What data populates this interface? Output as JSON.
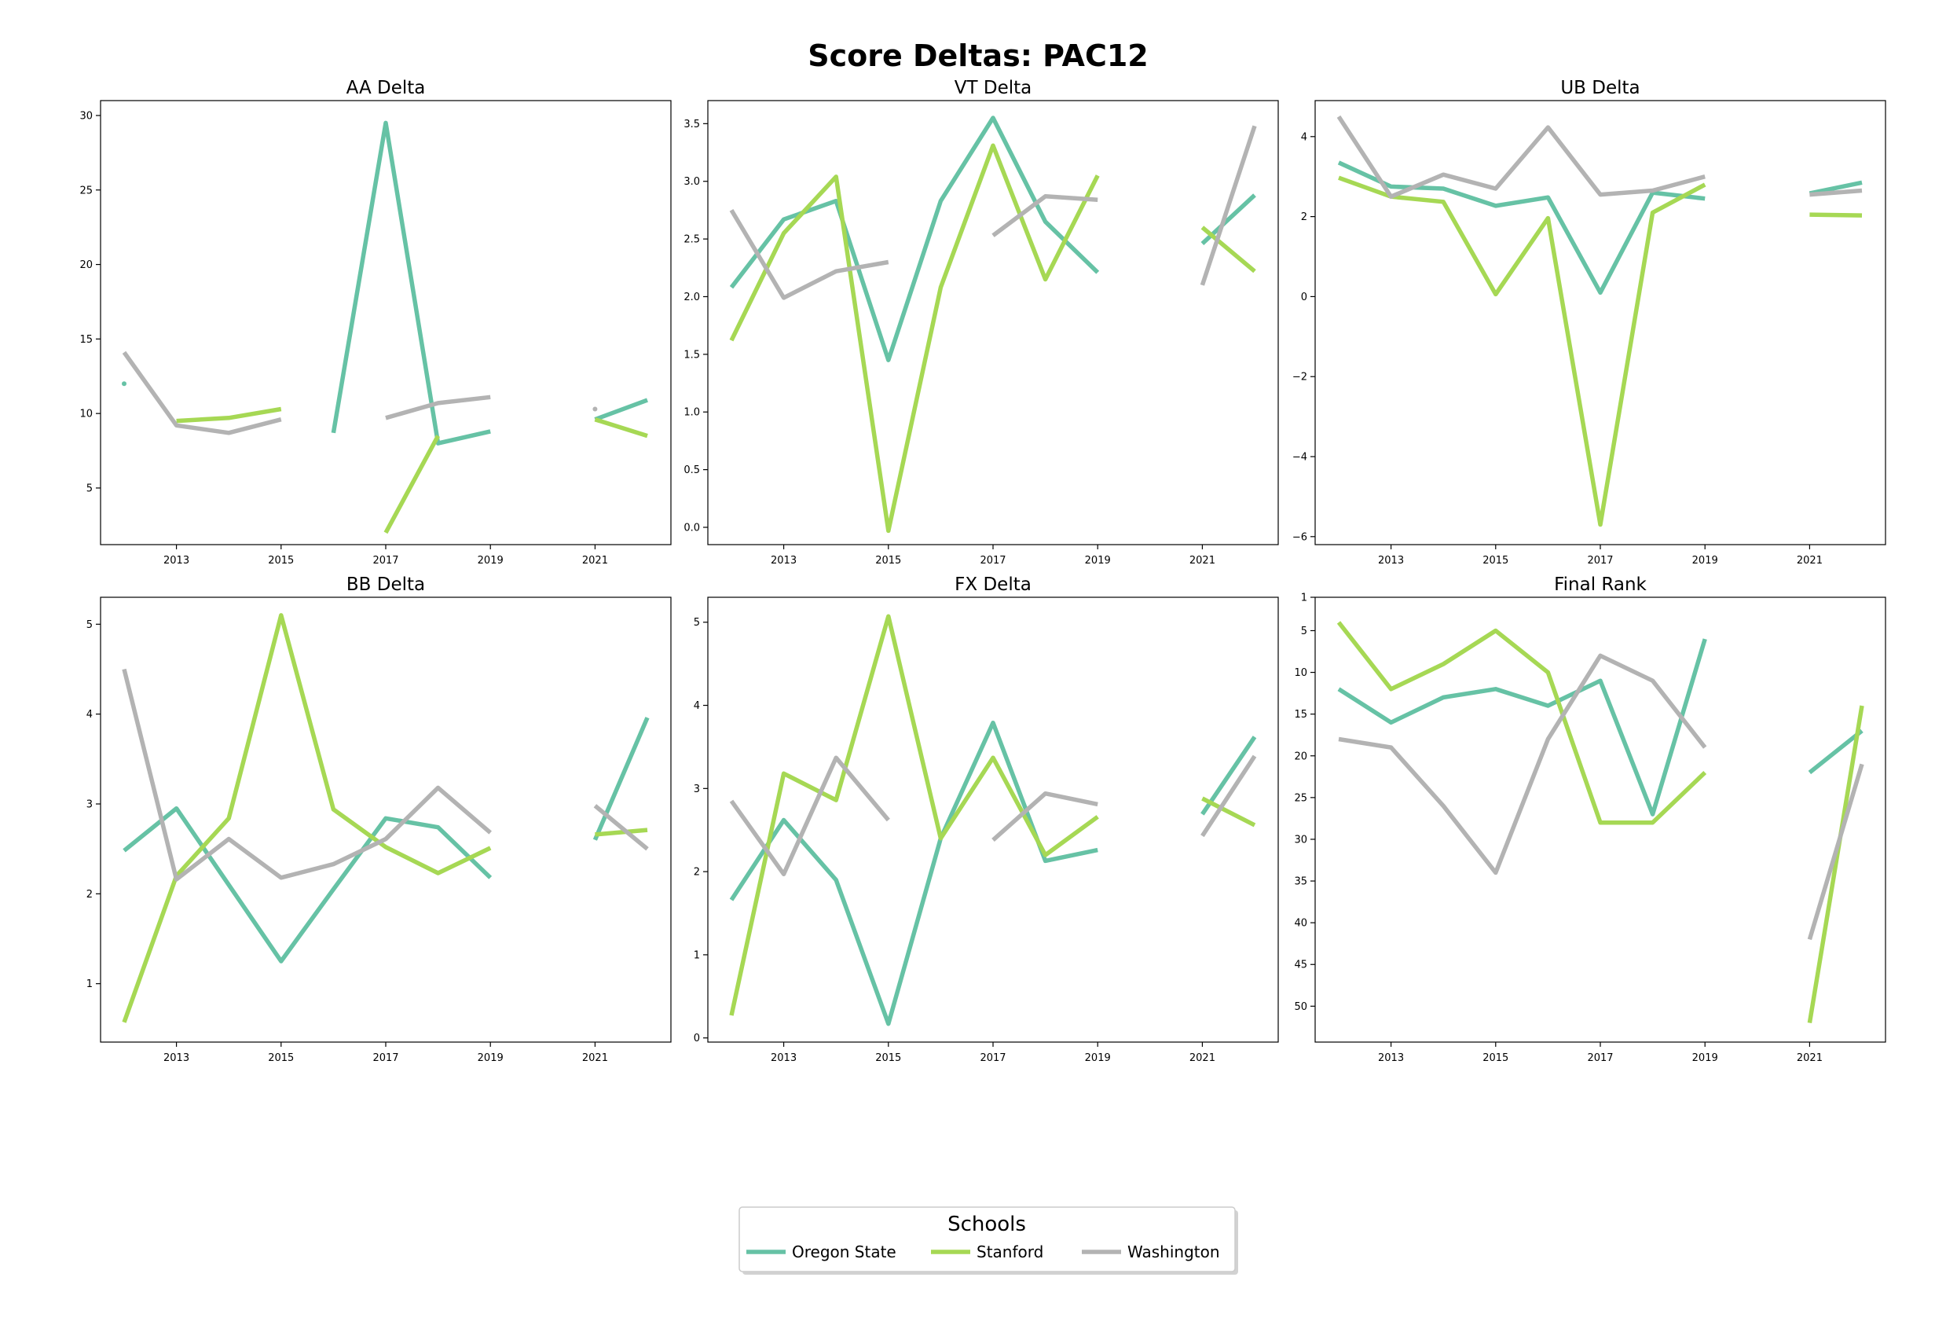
{
  "title": "Score Deltas: PAC12",
  "colors": {
    "Oregon State": "#66c2a5",
    "Stanford": "#a6d854",
    "Washington": "#b3b3b3"
  },
  "legend": {
    "title": "Schools",
    "entries": [
      "Oregon State",
      "Stanford",
      "Washington"
    ],
    "placement": "bottom-center"
  },
  "chart_data": [
    {
      "type": "line",
      "title": "AA Delta",
      "x": [
        2012,
        2013,
        2014,
        2015,
        2016,
        2017,
        2018,
        2019,
        2020,
        2021,
        2022
      ],
      "xticks": [
        2013,
        2015,
        2017,
        2019,
        2021
      ],
      "ylim": [
        1.2,
        31.0
      ],
      "yticks": [
        5,
        10,
        15,
        20,
        25,
        30
      ],
      "inverted": false,
      "series": [
        {
          "name": "Oregon State",
          "values": [
            12.0,
            null,
            null,
            null,
            8.7,
            29.5,
            8.0,
            8.8,
            null,
            9.6,
            10.9
          ]
        },
        {
          "name": "Stanford",
          "values": [
            null,
            9.5,
            9.7,
            10.3,
            null,
            2.0,
            8.5,
            null,
            null,
            9.6,
            8.5
          ]
        },
        {
          "name": "Washington",
          "values": [
            14.1,
            9.2,
            8.7,
            9.6,
            null,
            9.7,
            10.7,
            11.1,
            null,
            10.3,
            null
          ]
        }
      ]
    },
    {
      "type": "line",
      "title": "VT Delta",
      "x": [
        2012,
        2013,
        2014,
        2015,
        2016,
        2017,
        2018,
        2019,
        2020,
        2021,
        2022
      ],
      "xticks": [
        2013,
        2015,
        2017,
        2019,
        2021
      ],
      "ylim": [
        -0.15,
        3.7
      ],
      "yticks": [
        "0.0",
        "0.5",
        "1.0",
        "1.5",
        "2.0",
        "2.5",
        "3.0",
        "3.5"
      ],
      "inverted": false,
      "series": [
        {
          "name": "Oregon State",
          "values": [
            2.08,
            2.67,
            2.83,
            1.45,
            2.83,
            3.55,
            2.65,
            2.21,
            null,
            2.46,
            2.88
          ]
        },
        {
          "name": "Stanford",
          "values": [
            1.62,
            2.55,
            3.04,
            -0.03,
            2.08,
            3.31,
            2.15,
            3.05,
            null,
            2.6,
            2.22
          ]
        },
        {
          "name": "Washington",
          "values": [
            2.75,
            1.99,
            2.22,
            2.3,
            null,
            2.53,
            2.87,
            2.84,
            null,
            2.1,
            3.48
          ]
        }
      ]
    },
    {
      "type": "line",
      "title": "UB Delta",
      "x": [
        2012,
        2013,
        2014,
        2015,
        2016,
        2017,
        2018,
        2019,
        2020,
        2021,
        2022
      ],
      "xticks": [
        2013,
        2015,
        2017,
        2019,
        2021
      ],
      "ylim": [
        -6.2,
        4.9
      ],
      "yticks": [
        "−6",
        "−4",
        "−2",
        "0",
        "2",
        "4"
      ],
      "inverted": false,
      "series": [
        {
          "name": "Oregon State",
          "values": [
            3.35,
            2.75,
            2.7,
            2.27,
            2.48,
            0.1,
            2.6,
            2.45,
            null,
            2.58,
            2.85
          ]
        },
        {
          "name": "Stanford",
          "values": [
            2.97,
            2.5,
            2.37,
            0.06,
            1.96,
            -5.7,
            2.1,
            2.8,
            null,
            2.05,
            2.03
          ]
        },
        {
          "name": "Washington",
          "values": [
            4.5,
            2.5,
            3.05,
            2.7,
            4.23,
            2.55,
            2.65,
            3.0,
            null,
            2.55,
            2.65
          ]
        }
      ]
    },
    {
      "type": "line",
      "title": "BB Delta",
      "x": [
        2012,
        2013,
        2014,
        2015,
        2016,
        2017,
        2018,
        2019,
        2020,
        2021,
        2022
      ],
      "xticks": [
        2013,
        2015,
        2017,
        2019,
        2021
      ],
      "ylim": [
        0.35,
        5.3
      ],
      "yticks": [
        1,
        2,
        3,
        4,
        5
      ],
      "inverted": false,
      "series": [
        {
          "name": "Oregon State",
          "values": [
            2.48,
            2.95,
            2.1,
            1.25,
            2.05,
            2.84,
            2.74,
            2.18,
            null,
            2.6,
            3.96
          ]
        },
        {
          "name": "Stanford",
          "values": [
            0.57,
            2.2,
            2.84,
            5.1,
            2.94,
            2.52,
            2.23,
            2.51,
            null,
            2.66,
            2.71
          ]
        },
        {
          "name": "Washington",
          "values": [
            4.5,
            2.16,
            2.61,
            2.18,
            2.33,
            2.61,
            3.18,
            2.68,
            null,
            2.98,
            2.5
          ]
        }
      ]
    },
    {
      "type": "line",
      "title": "FX Delta",
      "x": [
        2012,
        2013,
        2014,
        2015,
        2016,
        2017,
        2018,
        2019,
        2020,
        2021,
        2022
      ],
      "xticks": [
        2013,
        2015,
        2017,
        2019,
        2021
      ],
      "ylim": [
        -0.05,
        5.3
      ],
      "yticks": [
        0,
        1,
        2,
        3,
        4,
        5
      ],
      "inverted": false,
      "series": [
        {
          "name": "Oregon State",
          "values": [
            1.66,
            2.62,
            1.9,
            0.17,
            2.4,
            3.79,
            2.13,
            2.26,
            null,
            2.69,
            3.62
          ]
        },
        {
          "name": "Stanford",
          "values": [
            0.27,
            3.18,
            2.86,
            5.07,
            2.4,
            3.37,
            2.2,
            2.66,
            null,
            2.88,
            2.56
          ]
        },
        {
          "name": "Washington",
          "values": [
            2.85,
            1.97,
            3.37,
            2.62,
            null,
            2.38,
            2.94,
            2.81,
            null,
            2.43,
            3.39
          ]
        }
      ]
    },
    {
      "type": "line",
      "title": "Final Rank",
      "x": [
        2012,
        2013,
        2014,
        2015,
        2016,
        2017,
        2018,
        2019,
        2020,
        2021,
        2022
      ],
      "xticks": [
        2013,
        2015,
        2017,
        2019,
        2021
      ],
      "ylim": [
        54.3,
        1
      ],
      "yticks": [
        1,
        5,
        10,
        15,
        20,
        25,
        30,
        35,
        40,
        45,
        50
      ],
      "inverted": true,
      "series": [
        {
          "name": "Oregon State",
          "values": [
            12,
            16,
            13,
            12,
            14,
            11,
            27,
            6,
            null,
            22,
            17
          ]
        },
        {
          "name": "Stanford",
          "values": [
            4,
            12,
            9,
            5,
            10,
            28,
            28,
            22,
            null,
            52,
            14
          ]
        },
        {
          "name": "Washington",
          "values": [
            18,
            19,
            26,
            34,
            18,
            8,
            11,
            19,
            null,
            42,
            21
          ]
        }
      ]
    }
  ]
}
